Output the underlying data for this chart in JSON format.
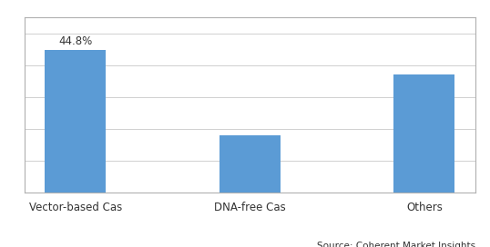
{
  "categories": [
    "Vector-based Cas",
    "DNA-free Cas",
    "Others"
  ],
  "values": [
    44.8,
    18.0,
    37.2
  ],
  "bar_color": "#5B9BD5",
  "label_text": "44.8%",
  "label_value_index": 0,
  "ylim": [
    0,
    55
  ],
  "source_text": "Source: Coherent Market Insights",
  "background_color": "#ffffff",
  "grid_color": "#d0d0d0",
  "bar_width": 0.35,
  "tick_fontsize": 8.5,
  "label_fontsize": 8.5,
  "source_fontsize": 7.5,
  "border_color": "#b0b0b0"
}
